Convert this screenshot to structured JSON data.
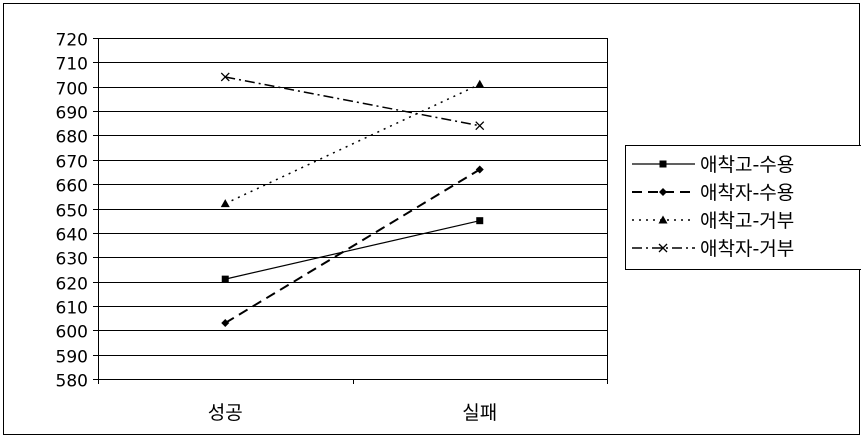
{
  "chart_data": {
    "type": "line",
    "title": "",
    "xlabel": "",
    "ylabel": "",
    "categories": [
      "성공",
      "실패"
    ],
    "ylim": [
      580,
      720
    ],
    "ytick_step": 10,
    "grid": true,
    "legend_position": "right",
    "series": [
      {
        "name": "애착고-수용",
        "values": [
          621,
          645
        ],
        "dash": "solid",
        "marker": "square"
      },
      {
        "name": "애착자-수용",
        "values": [
          603,
          666
        ],
        "dash": "dash",
        "marker": "diamond"
      },
      {
        "name": "애착고-거부",
        "values": [
          652,
          701
        ],
        "dash": "dot",
        "marker": "triangle"
      },
      {
        "name": "애착자-거부",
        "values": [
          704,
          684
        ],
        "dash": "dashdot",
        "marker": "x"
      }
    ]
  }
}
